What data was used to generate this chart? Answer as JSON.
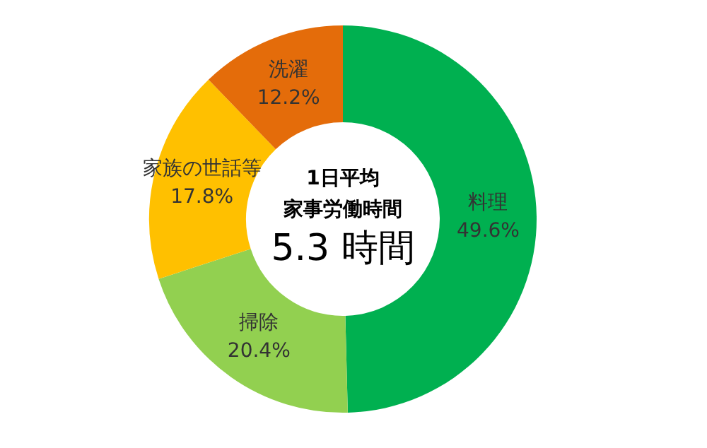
{
  "chart_data": {
    "type": "donut",
    "categories": [
      "料理",
      "掃除",
      "家族の世話等",
      "洗濯"
    ],
    "values": [
      49.6,
      20.4,
      17.8,
      12.2
    ],
    "colors": [
      "#00b050",
      "#92d050",
      "#ffc000",
      "#e46c0a"
    ],
    "value_labels": [
      "49.6%",
      "20.4%",
      "17.8%",
      "12.2%"
    ],
    "annotations": [
      "1日平均",
      "家事労働時間",
      "5.3 時間"
    ],
    "legend": false
  }
}
